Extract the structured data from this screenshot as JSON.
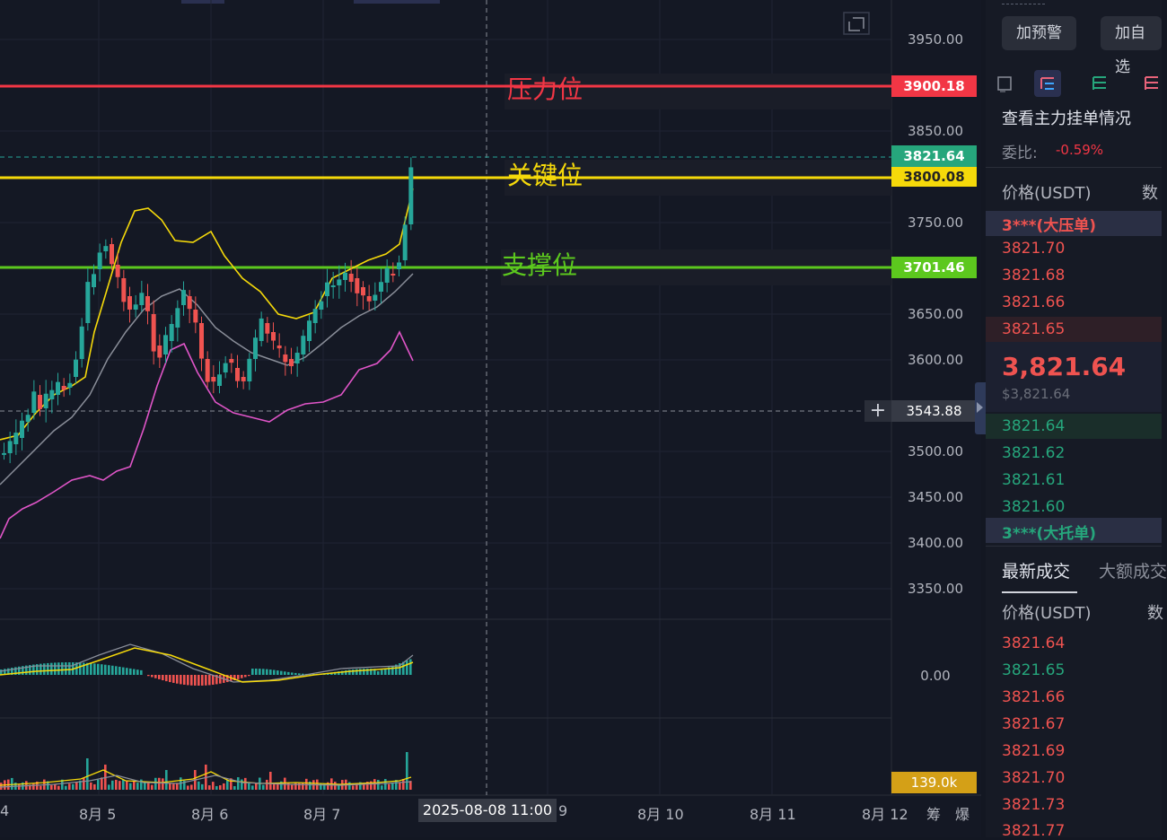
{
  "price_axis": {
    "labels": [
      "3950.00",
      "3850.00",
      "3750.00",
      "3650.00",
      "3600.00",
      "3500.00",
      "3450.00",
      "3400.00",
      "3350.00",
      "0.00"
    ],
    "resistance_value": "3900.18",
    "current_value": "3821.64",
    "key_value": "3800.08",
    "support_value": "3701.46",
    "crosshair_value": "3543.88",
    "volume_value": "139.0k"
  },
  "levels": {
    "resistance_label": "压力位",
    "key_label": "关键位",
    "support_label": "支撑位"
  },
  "time_axis": {
    "labels": [
      "4",
      "8月 5",
      "8月 6",
      "8月 7",
      "9",
      "8月 10",
      "8月 11",
      "8月 12"
    ],
    "crosshair_time": "2025-08-08 11:00",
    "icons_text": [
      "筹",
      "爆"
    ]
  },
  "colors": {
    "resistance": "#f23645",
    "key": "#f5d90a",
    "support": "#5cc81e",
    "current": "#26a67c",
    "volume_tag": "#d4a017"
  },
  "sidepanel": {
    "alert_button": "加预警",
    "watch_button": "加自选",
    "orderbook_title": "查看主力挂单情况",
    "ratio_label": "委比:",
    "ratio_value": "-0.59%",
    "price_header": "价格(USDT)",
    "qty_header": "数",
    "big_ask": "3***(大压单)",
    "asks": [
      "3821.70",
      "3821.68",
      "3821.66",
      "3821.65"
    ],
    "mid_price": "3,821.64",
    "mid_usd": "$3,821.64",
    "bids": [
      "3821.64",
      "3821.62",
      "3821.61",
      "3821.60"
    ],
    "big_bid": "3***(大托单)",
    "tab_latest": "最新成交",
    "tab_large": "大额成交",
    "trades_price_header": "价格(USDT)",
    "trades_qty_header": "数",
    "trades": [
      {
        "price": "3821.64",
        "side": "sell"
      },
      {
        "price": "3821.65",
        "side": "buy"
      },
      {
        "price": "3821.66",
        "side": "sell"
      },
      {
        "price": "3821.67",
        "side": "sell"
      },
      {
        "price": "3821.69",
        "side": "sell"
      },
      {
        "price": "3821.70",
        "side": "sell"
      },
      {
        "price": "3821.73",
        "side": "sell"
      },
      {
        "price": "3821.77",
        "side": "sell"
      }
    ]
  }
}
